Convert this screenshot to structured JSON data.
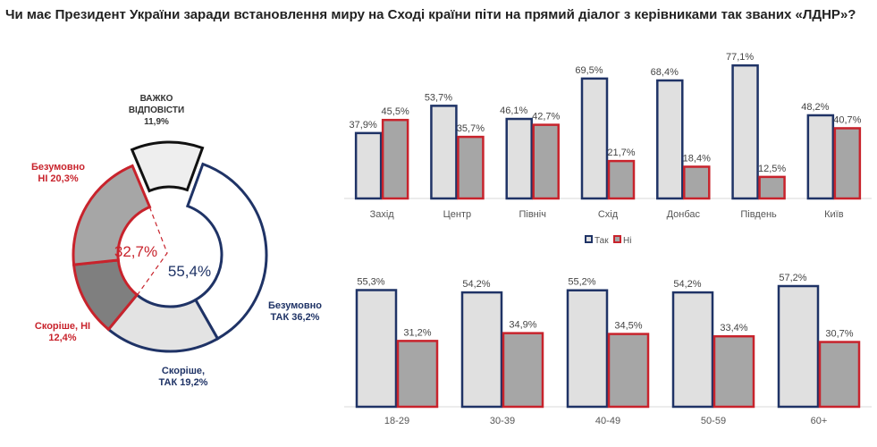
{
  "title": "Чи має Президент України заради встановлення миру на Сході країни піти на прямий діалог з керівниками так званих «ЛДНР»?",
  "colors": {
    "yes": "#1f3366",
    "no": "#c8232c",
    "yes_fill": "#e0e0e0",
    "no_fill": "#a6a6a6"
  },
  "chart_data": [
    {
      "type": "pie",
      "variant": "donut",
      "slices": [
        {
          "label_lines": [
            "Безумовно",
            "ТАК 36,2%"
          ],
          "value": 36.2,
          "group": "yes",
          "fill": "#ffffff"
        },
        {
          "label_lines": [
            "Скоріше,",
            "ТАК 19,2%"
          ],
          "value": 19.2,
          "group": "yes",
          "fill": "#e3e3e3"
        },
        {
          "label_lines": [
            "Скоріше, НІ",
            "12,4%"
          ],
          "value": 12.4,
          "group": "no",
          "fill": "#7f7f7f"
        },
        {
          "label_lines": [
            "Безумовно",
            "НІ 20,3%"
          ],
          "value": 20.3,
          "group": "no",
          "fill": "#a6a6a6"
        },
        {
          "label_lines": [
            "ВАЖКО",
            "ВІДПОВІСТИ",
            "11,9%"
          ],
          "value": 11.9,
          "group": "hard",
          "fill": "#eeeeee"
        }
      ],
      "center_labels": {
        "yes_total": "55,4%",
        "no_total": "32,7%"
      }
    },
    {
      "type": "bar",
      "title": "",
      "categories": [
        "Захід",
        "Центр",
        "Північ",
        "Схід",
        "Донбас",
        "Південь",
        "Київ"
      ],
      "series": [
        {
          "name": "Так",
          "values": [
            37.9,
            53.7,
            46.1,
            69.5,
            68.4,
            77.1,
            48.2
          ],
          "labels": [
            "37,9%",
            "53,7%",
            "46,1%",
            "69,5%",
            "68,4%",
            "77,1%",
            "48,2%"
          ]
        },
        {
          "name": "Ні",
          "values": [
            45.5,
            35.7,
            42.7,
            21.7,
            18.4,
            12.5,
            40.7
          ],
          "labels": [
            "45,5%",
            "35,7%",
            "42,7%",
            "21,7%",
            "18,4%",
            "12,5%",
            "40,7%"
          ]
        }
      ],
      "legend": [
        "Так",
        "Ні"
      ],
      "legend_position": "bottom",
      "ylim": [
        0,
        80
      ]
    },
    {
      "type": "bar",
      "title": "",
      "categories": [
        "18-29",
        "30-39",
        "40-49",
        "50-59",
        "60+"
      ],
      "series": [
        {
          "name": "Так",
          "values": [
            55.3,
            54.2,
            55.2,
            54.2,
            57.2
          ],
          "labels": [
            "55,3%",
            "54,2%",
            "55,2%",
            "54,2%",
            "57,2%"
          ]
        },
        {
          "name": "Ні",
          "values": [
            31.2,
            34.9,
            34.5,
            33.4,
            30.7
          ],
          "labels": [
            "31,2%",
            "34,9%",
            "34,5%",
            "33,4%",
            "30,7%"
          ]
        }
      ],
      "ylim": [
        0,
        60
      ]
    }
  ]
}
